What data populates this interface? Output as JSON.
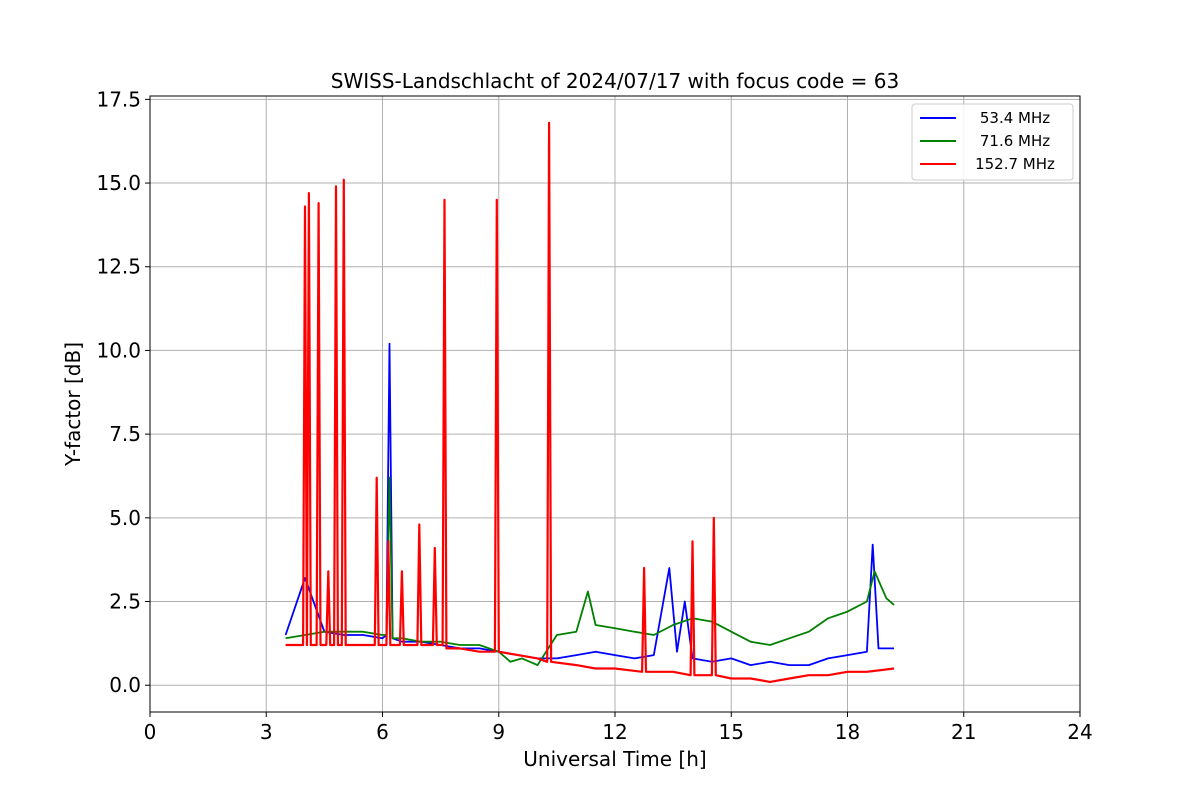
{
  "chart_data": {
    "type": "line",
    "title": "SWISS-Landschlacht of 2024/07/17 with focus code = 63",
    "xlabel": "Universal Time [h]",
    "ylabel": "Y-factor [dB]",
    "xlim": [
      0,
      24
    ],
    "ylim": [
      -0.8,
      17.6
    ],
    "xticks": [
      0,
      3,
      6,
      9,
      12,
      15,
      18,
      21,
      24
    ],
    "xtick_labels": [
      "0",
      "3",
      "6",
      "9",
      "12",
      "15",
      "18",
      "21",
      "24"
    ],
    "yticks": [
      0,
      2.5,
      5,
      7.5,
      10,
      12.5,
      15,
      17.5
    ],
    "ytick_labels": [
      "0.0",
      "2.5",
      "5.0",
      "7.5",
      "10.0",
      "12.5",
      "15.0",
      "17.5"
    ],
    "grid": true,
    "legend_position": "top-right",
    "series": [
      {
        "name": "53.4 MHz",
        "color": "#0000ff",
        "x": [
          3.5,
          4.0,
          4.5,
          5.0,
          5.5,
          6.0,
          6.1,
          6.18,
          6.26,
          6.5,
          7.0,
          7.5,
          8.0,
          8.5,
          9.0,
          9.5,
          10.0,
          10.5,
          11.0,
          11.5,
          12.0,
          12.5,
          13.0,
          13.4,
          13.6,
          13.8,
          14.0,
          14.5,
          15.0,
          15.5,
          16.0,
          16.5,
          17.0,
          17.5,
          18.0,
          18.5,
          18.65,
          18.8,
          19.2
        ],
        "y": [
          1.5,
          3.2,
          1.6,
          1.5,
          1.5,
          1.4,
          1.5,
          10.2,
          1.4,
          1.3,
          1.3,
          1.2,
          1.1,
          1.1,
          1.0,
          0.9,
          0.8,
          0.8,
          0.9,
          1.0,
          0.9,
          0.8,
          0.9,
          3.5,
          1.0,
          2.5,
          0.8,
          0.7,
          0.8,
          0.6,
          0.7,
          0.6,
          0.6,
          0.8,
          0.9,
          1.0,
          4.2,
          1.1,
          1.1
        ]
      },
      {
        "name": "71.6 MHz",
        "color": "#008000",
        "x": [
          3.5,
          4.0,
          4.5,
          5.0,
          5.5,
          6.0,
          6.1,
          6.18,
          6.26,
          6.5,
          7.0,
          7.5,
          8.0,
          8.5,
          9.0,
          9.3,
          9.6,
          10.0,
          10.5,
          11.0,
          11.3,
          11.5,
          12.0,
          12.5,
          13.0,
          13.5,
          14.0,
          14.5,
          15.0,
          15.5,
          16.0,
          16.5,
          17.0,
          17.5,
          18.0,
          18.5,
          18.7,
          19.0,
          19.2
        ],
        "y": [
          1.4,
          1.5,
          1.6,
          1.6,
          1.6,
          1.5,
          1.5,
          6.2,
          1.4,
          1.4,
          1.3,
          1.3,
          1.2,
          1.2,
          1.0,
          0.7,
          0.8,
          0.6,
          1.5,
          1.6,
          2.8,
          1.8,
          1.7,
          1.6,
          1.5,
          1.8,
          2.0,
          1.9,
          1.6,
          1.3,
          1.2,
          1.4,
          1.6,
          2.0,
          2.2,
          2.5,
          3.4,
          2.6,
          2.4
        ]
      },
      {
        "name": "152.7 MHz",
        "color": "#ff0000",
        "x": [
          3.5,
          3.95,
          4.0,
          4.05,
          4.1,
          4.15,
          4.3,
          4.35,
          4.4,
          4.55,
          4.6,
          4.65,
          4.75,
          4.8,
          4.85,
          4.95,
          5.0,
          5.05,
          5.5,
          5.8,
          5.85,
          5.9,
          6.1,
          6.15,
          6.2,
          6.45,
          6.5,
          6.55,
          6.9,
          6.95,
          7.0,
          7.3,
          7.35,
          7.4,
          7.55,
          7.6,
          7.65,
          8.0,
          8.5,
          8.9,
          8.95,
          9.0,
          9.5,
          10.0,
          10.25,
          10.3,
          10.35,
          11.0,
          11.5,
          12.0,
          12.7,
          12.75,
          12.8,
          13.5,
          13.95,
          14.0,
          14.05,
          14.5,
          14.55,
          14.6,
          15.0,
          15.5,
          16.0,
          16.5,
          17.0,
          17.5,
          18.0,
          18.5,
          19.2
        ],
        "y": [
          1.2,
          1.2,
          14.3,
          1.2,
          14.7,
          1.2,
          1.2,
          14.4,
          1.2,
          1.2,
          3.4,
          1.2,
          1.2,
          14.9,
          1.2,
          1.2,
          15.1,
          1.2,
          1.2,
          1.2,
          6.2,
          1.2,
          1.2,
          4.3,
          1.2,
          1.2,
          3.4,
          1.2,
          1.2,
          4.8,
          1.2,
          1.2,
          4.1,
          1.2,
          1.2,
          14.5,
          1.1,
          1.1,
          1.0,
          1.0,
          14.5,
          1.0,
          0.9,
          0.8,
          0.7,
          16.8,
          0.7,
          0.6,
          0.5,
          0.5,
          0.4,
          3.5,
          0.4,
          0.4,
          0.3,
          4.3,
          0.3,
          0.3,
          5.0,
          0.3,
          0.2,
          0.2,
          0.1,
          0.2,
          0.3,
          0.3,
          0.4,
          0.4,
          0.5
        ]
      }
    ]
  }
}
